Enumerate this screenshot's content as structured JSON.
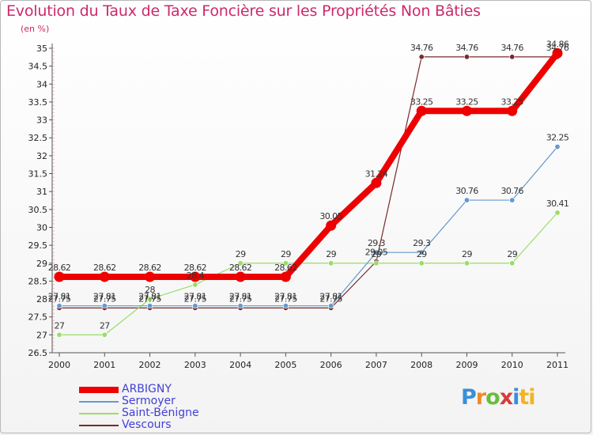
{
  "title": "Evolution du Taux de Taxe Foncière sur les Propriétés Non Bâties",
  "unit": "(en %)",
  "logo": [
    "P",
    "r",
    "o",
    "x",
    "i",
    "ti"
  ],
  "colors": {
    "ARBIGNY": "#ee0000",
    "Sermoyer": "#6699cc",
    "Saint-Bénigne": "#99dd66",
    "Vescours": "#7a2a2a"
  },
  "chart_data": {
    "type": "line",
    "title": "Evolution du Taux de Taxe Foncière sur les Propriétés Non Bâties",
    "ylabel": "(en %)",
    "xlabel": "",
    "ylim": [
      26.5,
      35
    ],
    "yticks": [
      "26.5",
      "27",
      "27.5",
      "28",
      "28.5",
      "29",
      "29.5",
      "30",
      "30.5",
      "31",
      "31.5",
      "32",
      "32.5",
      "33",
      "33.5",
      "34",
      "34.5",
      "35"
    ],
    "categories": [
      "2000",
      "2001",
      "2002",
      "2003",
      "2004",
      "2005",
      "2006",
      "2007",
      "2008",
      "2009",
      "2010",
      "2011"
    ],
    "series": [
      {
        "name": "ARBIGNY",
        "values": [
          28.62,
          28.62,
          28.62,
          28.62,
          28.62,
          28.62,
          30.05,
          31.24,
          33.25,
          33.25,
          33.25,
          34.86
        ],
        "labels": [
          "28.62",
          "28.62",
          "28.62",
          "28.62",
          "28.62",
          "28.62",
          "30.05",
          "31.24",
          "33.25",
          "33.25",
          "33.25",
          "34.86"
        ]
      },
      {
        "name": "Sermoyer",
        "values": [
          27.81,
          27.81,
          27.81,
          27.81,
          27.81,
          27.81,
          27.81,
          29.3,
          29.3,
          30.76,
          30.76,
          32.25
        ],
        "labels": [
          "27.81",
          "27.81",
          "27.81",
          "27.81",
          "27.81",
          "27.81",
          "27.81",
          "29.3",
          "29.3",
          "30.76",
          "30.76",
          "32.25"
        ]
      },
      {
        "name": "Saint-Bénigne",
        "values": [
          27,
          27,
          28,
          28.4,
          29,
          29,
          29,
          29,
          29,
          29,
          29,
          30.41
        ],
        "labels": [
          "27",
          "27",
          "28",
          "28.4",
          "29",
          "29",
          "29",
          "29",
          "29",
          "29",
          "29",
          "30.41"
        ]
      },
      {
        "name": "Vescours",
        "values": [
          27.75,
          27.75,
          27.75,
          27.75,
          27.75,
          27.75,
          27.75,
          29.05,
          34.76,
          34.76,
          34.76,
          34.76
        ],
        "labels": [
          "27.75",
          "27.75",
          "27.75",
          "27.75",
          "27.75",
          "27.75",
          "27.75",
          "29.05",
          "34.76",
          "34.76",
          "34.76",
          "34.76"
        ]
      }
    ],
    "legend_position": "bottom-left",
    "grid": false
  }
}
